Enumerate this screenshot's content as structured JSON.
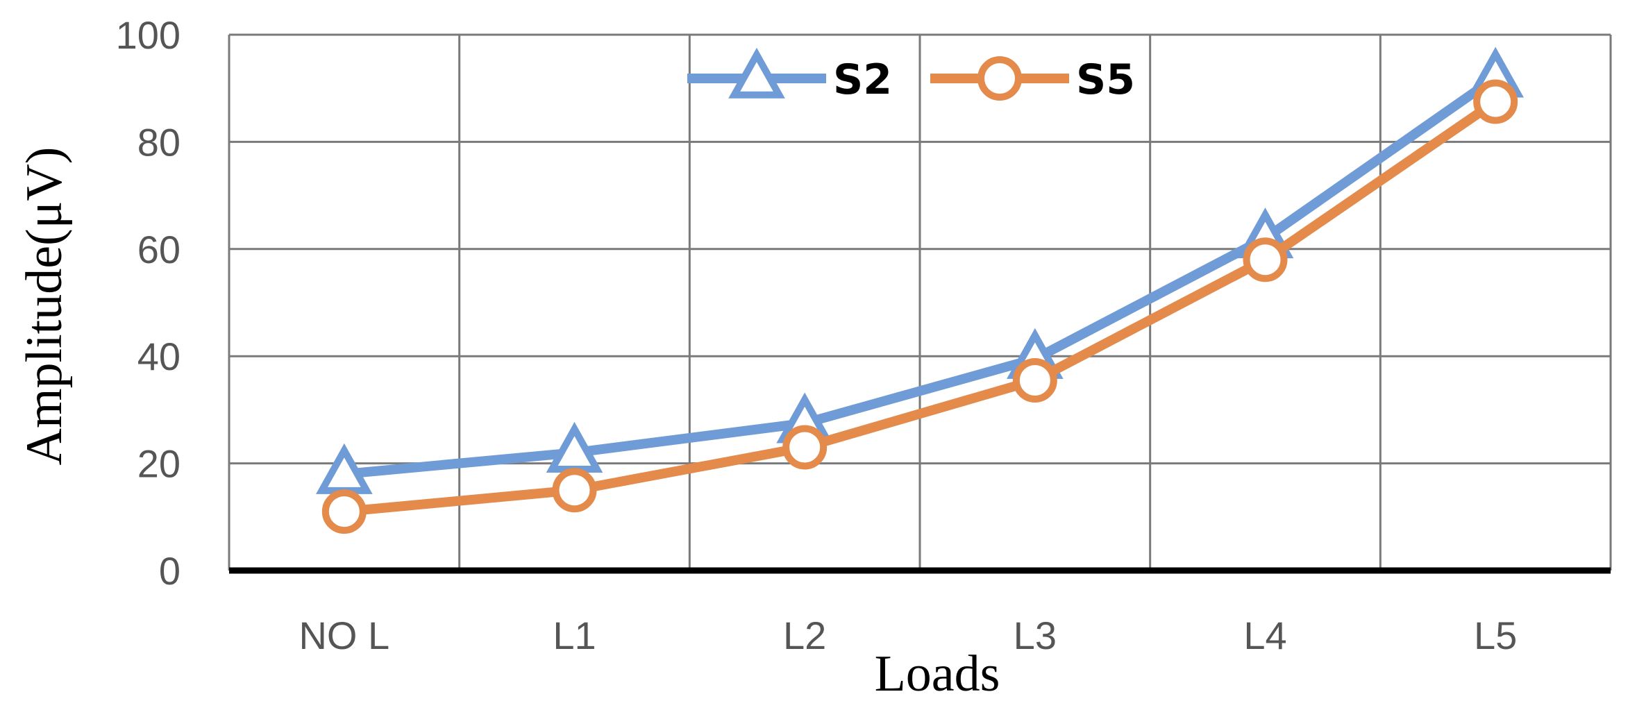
{
  "chart_data": {
    "type": "line",
    "categories": [
      "NO L",
      "L1",
      "L2",
      "L3",
      "L4",
      "L5"
    ],
    "series": [
      {
        "name": "S2",
        "values": [
          18,
          22,
          27.5,
          39.5,
          62,
          92
        ],
        "color": "#6f9bd6",
        "marker": "triangle"
      },
      {
        "name": "S5",
        "values": [
          11,
          15,
          23,
          35.5,
          58,
          87.5
        ],
        "color": "#e48a4b",
        "marker": "circle"
      }
    ],
    "xlabel": "Loads",
    "ylabel": "Amplitude(μV)",
    "ylim": [
      0,
      100
    ],
    "yticks": [
      "0",
      "20",
      "40",
      "60",
      "80",
      "100"
    ],
    "grid": true,
    "legend_position": "top-center"
  }
}
